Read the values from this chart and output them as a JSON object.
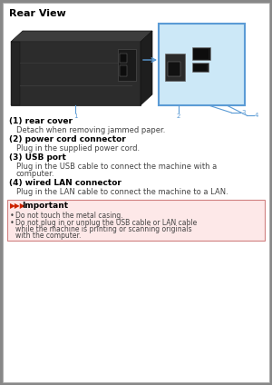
{
  "title": "Rear View",
  "bg_color": "#ffffff",
  "border_color": "#aaaaaa",
  "page_bg": "#888888",
  "items": [
    {
      "label": "(1) rear cover",
      "sublabel": "Detach when removing jammed paper."
    },
    {
      "label": "(2) power cord connector",
      "sublabel": "Plug in the supplied power cord."
    },
    {
      "label": "(3) USB port",
      "sublabel": "Plug in the USB cable to connect the machine with a computer."
    },
    {
      "label": "(4) wired LAN connector",
      "sublabel": "Plug in the LAN cable to connect the machine to a LAN."
    }
  ],
  "important_title": "Important",
  "important_bullets": [
    "Do not touch the metal casing.",
    "Do not plug in or unplug the USB cable or LAN cable while the machine is printing or scanning originals with the computer."
  ],
  "important_bg": "#fde8e8",
  "important_border": "#d08080",
  "callout_color": "#5b9bd5",
  "text_color": "#444444",
  "bold_color": "#000000",
  "red_icon_color": "#cc2200"
}
